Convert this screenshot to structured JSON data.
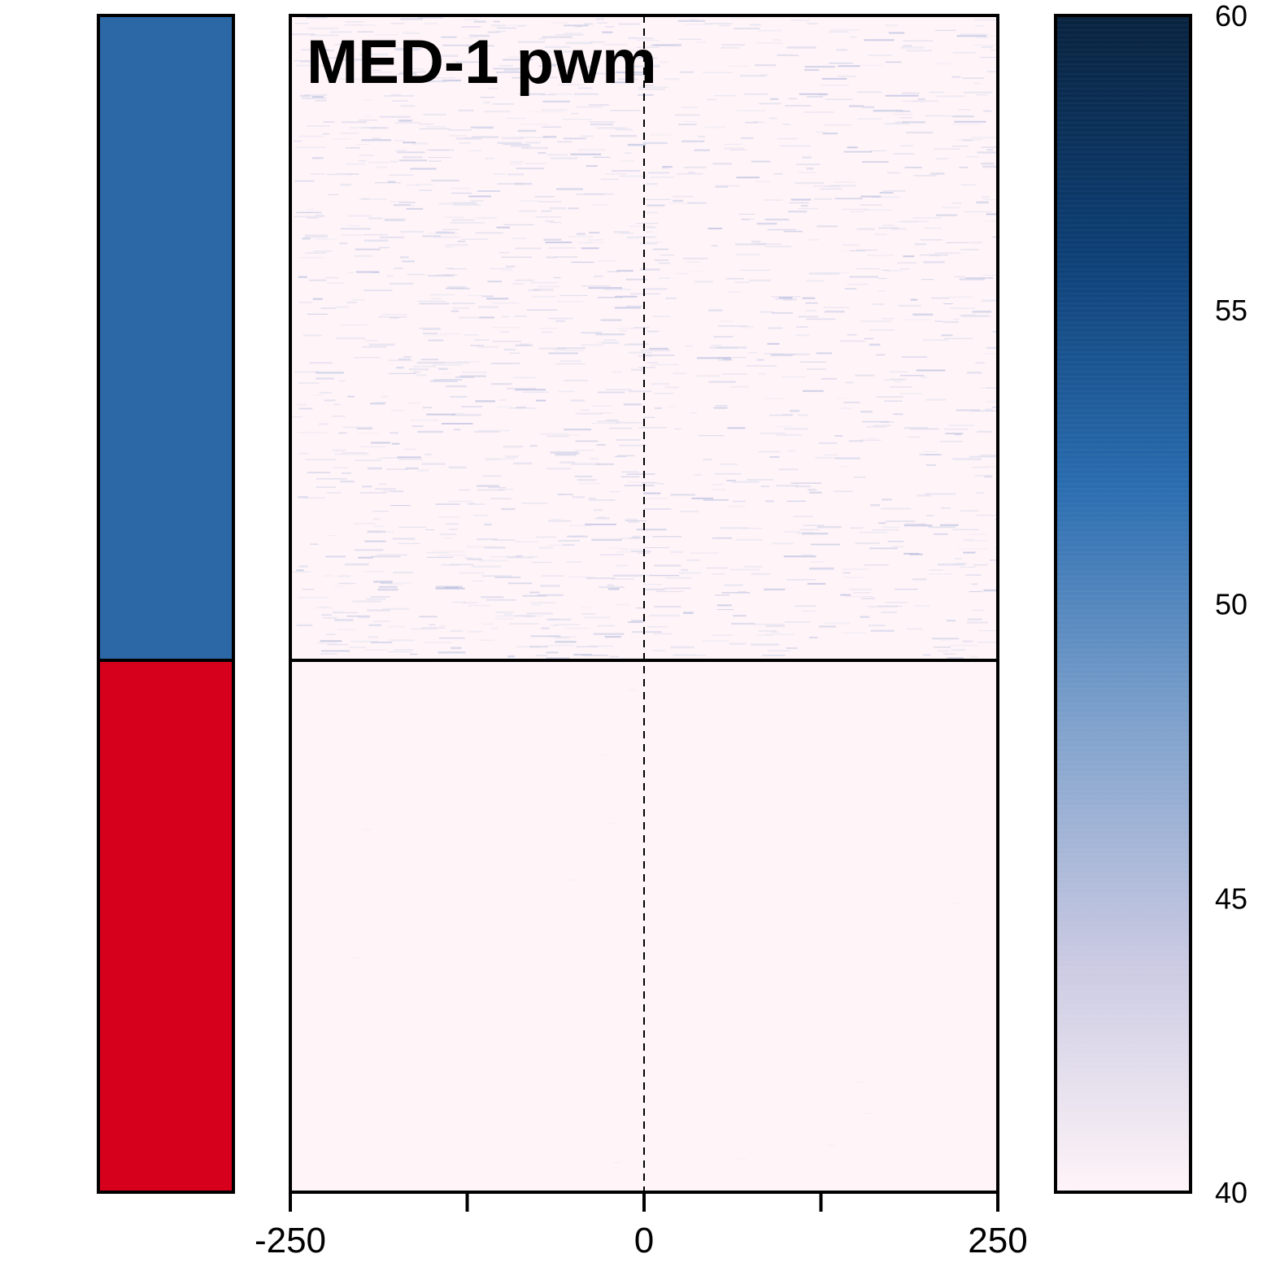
{
  "chart_data": {
    "type": "heatmap",
    "title": "MED-1 pwm",
    "xlabel": "",
    "ylabel": "",
    "x_range": [
      -250,
      250
    ],
    "x_ticks": [
      -250,
      -125,
      0,
      125,
      250
    ],
    "x_tick_labels": [
      "-250",
      "",
      "0",
      "",
      "250"
    ],
    "center_reference_line": 0,
    "groups": [
      {
        "color": "#2c68a6",
        "row_fraction": 0.55,
        "signal": "sparse faint motif hits"
      },
      {
        "color": "#d7001c",
        "row_fraction": 0.45,
        "signal": "near baseline"
      }
    ],
    "color_scale": {
      "min": 40,
      "max": 60,
      "ticks": [
        40,
        45,
        50,
        55,
        60
      ],
      "colors": [
        "#fff4f8",
        "#c9c9e2",
        "#7ea1cc",
        "#2a6db0",
        "#0d3f75",
        "#09233f"
      ]
    }
  }
}
